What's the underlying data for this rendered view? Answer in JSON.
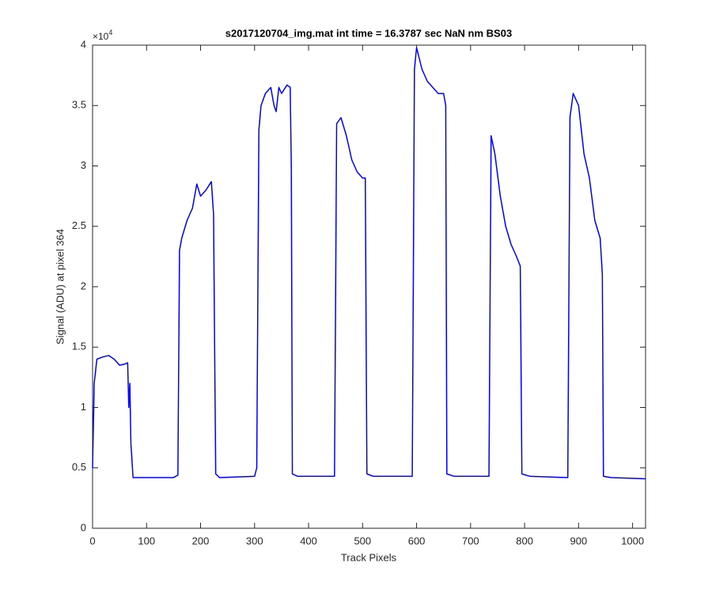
{
  "chart_data": {
    "type": "line",
    "title": "s2017120704_img.mat int time = 16.3787 sec  NaN nm BS03",
    "x_label": "Track Pixels",
    "y_label": "Signal (ADU) at pixel 364",
    "y_exponent": {
      "base": "×10",
      "power": "4"
    },
    "xlim": [
      0,
      1024
    ],
    "xticks": [
      0,
      100,
      200,
      300,
      400,
      500,
      600,
      700,
      800,
      900,
      1000
    ],
    "ylim": [
      0,
      4
    ],
    "yticks": [
      0,
      0.5,
      1,
      1.5,
      2,
      2.5,
      3,
      3.5,
      4
    ],
    "grid": false,
    "series": [
      {
        "color": "#0000ff",
        "x": [
          0,
          3,
          8,
          20,
          30,
          40,
          50,
          60,
          65,
          67,
          69,
          71,
          75,
          150,
          158,
          161,
          165,
          175,
          185,
          193,
          200,
          210,
          220,
          224,
          228,
          235,
          300,
          304,
          308,
          312,
          320,
          330,
          336,
          340,
          345,
          350,
          360,
          366,
          368,
          370,
          380,
          448,
          452,
          460,
          470,
          480,
          490,
          500,
          505,
          508,
          520,
          592,
          596,
          600,
          610,
          620,
          630,
          640,
          650,
          654,
          656,
          670,
          734,
          738,
          745,
          755,
          765,
          775,
          785,
          792,
          795,
          810,
          880,
          884,
          890,
          900,
          910,
          920,
          930,
          940,
          944,
          946,
          960,
          1024
        ],
        "values": [
          0.5,
          1.2,
          1.4,
          1.42,
          1.43,
          1.4,
          1.35,
          1.36,
          1.37,
          1.0,
          1.2,
          0.7,
          0.42,
          0.42,
          0.44,
          2.3,
          2.4,
          2.55,
          2.65,
          2.85,
          2.75,
          2.8,
          2.87,
          2.6,
          0.45,
          0.42,
          0.43,
          0.5,
          3.3,
          3.5,
          3.6,
          3.65,
          3.5,
          3.45,
          3.65,
          3.6,
          3.67,
          3.65,
          3.0,
          0.45,
          0.43,
          0.43,
          3.35,
          3.4,
          3.25,
          3.05,
          2.95,
          2.9,
          2.9,
          0.45,
          0.43,
          0.43,
          3.8,
          3.98,
          3.8,
          3.7,
          3.65,
          3.6,
          3.6,
          3.5,
          0.45,
          0.43,
          0.43,
          3.25,
          3.1,
          2.75,
          2.5,
          2.35,
          2.25,
          2.17,
          0.45,
          0.43,
          0.42,
          3.4,
          3.6,
          3.5,
          3.1,
          2.9,
          2.55,
          2.4,
          2.1,
          0.43,
          0.42,
          0.41
        ]
      }
    ]
  }
}
